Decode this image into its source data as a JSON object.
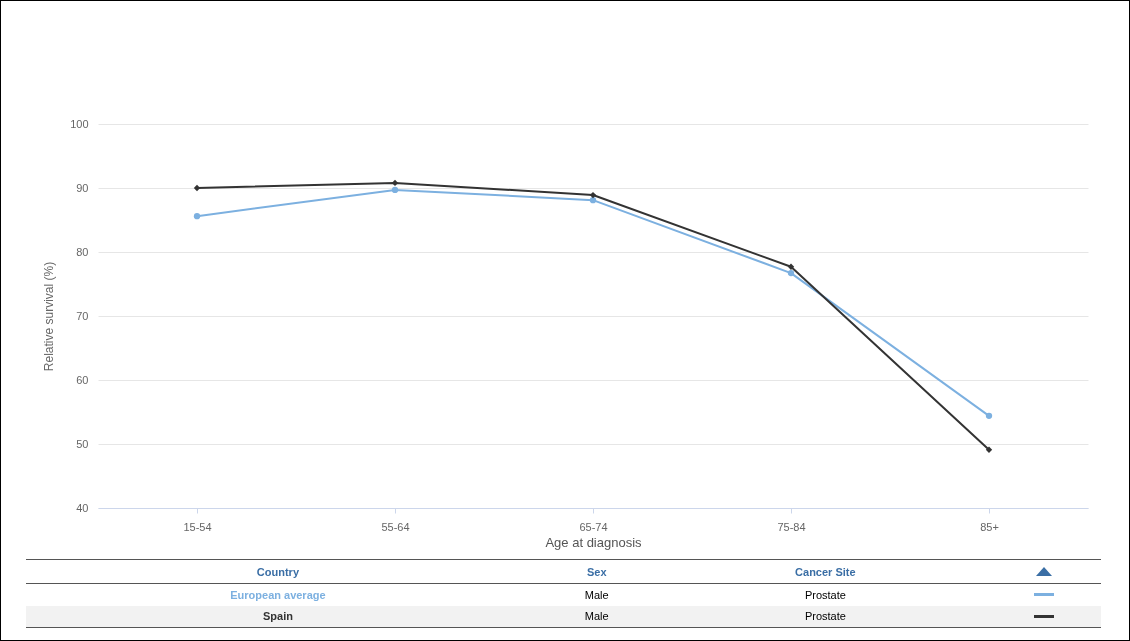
{
  "chart_data": {
    "type": "line",
    "xlabel": "Age at diagnosis",
    "ylabel": "Relative survival (%)",
    "categories": [
      "15-54",
      "55-64",
      "65-74",
      "75-84",
      "85+"
    ],
    "series": [
      {
        "name": "European average",
        "color": "#7cb0e0",
        "marker": "circle",
        "values": [
          85.6,
          89.7,
          88.1,
          76.7,
          54.4
        ]
      },
      {
        "name": "Spain",
        "color": "#333333",
        "marker": "diamond",
        "values": [
          90,
          90.8,
          88.9,
          77.7,
          49.1
        ]
      }
    ],
    "ylim": [
      40,
      100
    ],
    "yticks": [
      40,
      50,
      60,
      70,
      80,
      90,
      100
    ],
    "grid": "y",
    "legend": "bottom",
    "legend_title": "Country",
    "annotations": [
      "Sex",
      "Cancer Site",
      "Male",
      "Prostate",
      "Male",
      "Prostate"
    ]
  }
}
